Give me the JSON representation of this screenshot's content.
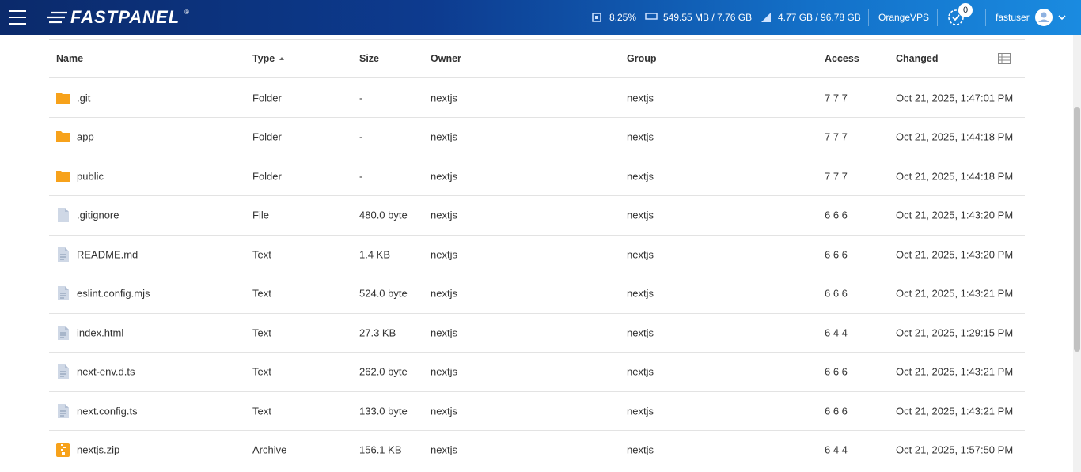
{
  "header": {
    "logo": "FASTPANEL",
    "logo_mark": "®",
    "cpu": "8.25%",
    "ram": "549.55 MB / 7.76 GB",
    "disk": "4.77 GB / 96.78 GB",
    "server": "OrangeVPS",
    "tasks_badge": "0",
    "user": "fastuser"
  },
  "table": {
    "columns": [
      "Name",
      "Type",
      "Size",
      "Owner",
      "Group",
      "Access",
      "Changed"
    ],
    "rows": [
      {
        "icon": "folder",
        "name": ".git",
        "type": "Folder",
        "size": "-",
        "owner": "nextjs",
        "group": "nextjs",
        "access": "7 7 7",
        "changed": "Oct 21, 2025, 1:47:01 PM"
      },
      {
        "icon": "folder",
        "name": "app",
        "type": "Folder",
        "size": "-",
        "owner": "nextjs",
        "group": "nextjs",
        "access": "7 7 7",
        "changed": "Oct 21, 2025, 1:44:18 PM"
      },
      {
        "icon": "folder",
        "name": "public",
        "type": "Folder",
        "size": "-",
        "owner": "nextjs",
        "group": "nextjs",
        "access": "7 7 7",
        "changed": "Oct 21, 2025, 1:44:18 PM"
      },
      {
        "icon": "file",
        "name": ".gitignore",
        "type": "File",
        "size": "480.0 byte",
        "owner": "nextjs",
        "group": "nextjs",
        "access": "6 6 6",
        "changed": "Oct 21, 2025, 1:43:20 PM"
      },
      {
        "icon": "text",
        "name": "README.md",
        "type": "Text",
        "size": "1.4 KB",
        "owner": "nextjs",
        "group": "nextjs",
        "access": "6 6 6",
        "changed": "Oct 21, 2025, 1:43:20 PM"
      },
      {
        "icon": "text",
        "name": "eslint.config.mjs",
        "type": "Text",
        "size": "524.0 byte",
        "owner": "nextjs",
        "group": "nextjs",
        "access": "6 6 6",
        "changed": "Oct 21, 2025, 1:43:21 PM"
      },
      {
        "icon": "text",
        "name": "index.html",
        "type": "Text",
        "size": "27.3 KB",
        "owner": "nextjs",
        "group": "nextjs",
        "access": "6 4 4",
        "changed": "Oct 21, 2025, 1:29:15 PM"
      },
      {
        "icon": "text",
        "name": "next-env.d.ts",
        "type": "Text",
        "size": "262.0 byte",
        "owner": "nextjs",
        "group": "nextjs",
        "access": "6 6 6",
        "changed": "Oct 21, 2025, 1:43:21 PM"
      },
      {
        "icon": "text",
        "name": "next.config.ts",
        "type": "Text",
        "size": "133.0 byte",
        "owner": "nextjs",
        "group": "nextjs",
        "access": "6 6 6",
        "changed": "Oct 21, 2025, 1:43:21 PM"
      },
      {
        "icon": "archive",
        "name": "nextjs.zip",
        "type": "Archive",
        "size": "156.1 KB",
        "owner": "nextjs",
        "group": "nextjs",
        "access": "6 4 4",
        "changed": "Oct 21, 2025, 1:57:50 PM"
      }
    ]
  }
}
